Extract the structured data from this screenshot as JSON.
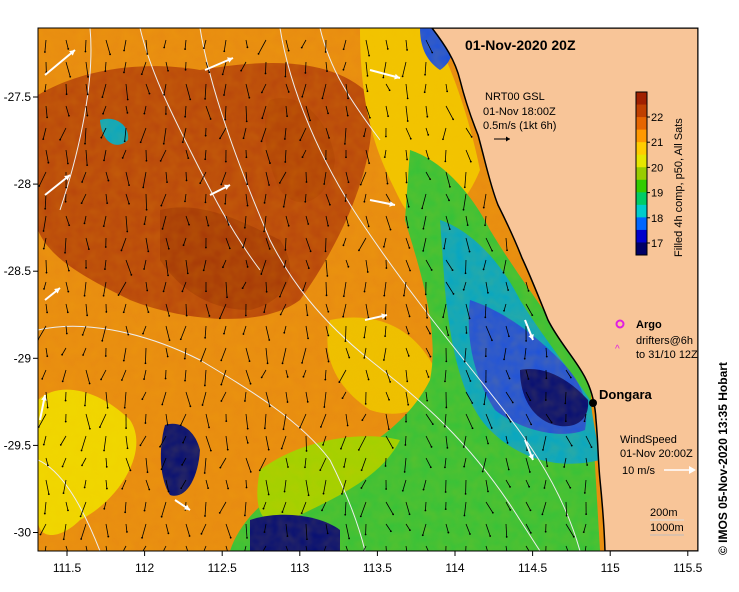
{
  "title": "01-Nov-2020 20Z",
  "current_legend": {
    "product": "NRT00 GSL",
    "time": "01-Nov 18:00Z",
    "scale": "0.5m/s (1kt 6h)"
  },
  "colorbar": {
    "label": "Filled 4h comp, p50, All Sats",
    "ticks": [
      "17",
      "18",
      "19",
      "20",
      "21",
      "22"
    ],
    "colors": [
      "#000066",
      "#0000cc",
      "#0066ff",
      "#00cccc",
      "#00cc66",
      "#33cc00",
      "#99cc00",
      "#e6e600",
      "#ffcc00",
      "#ff9900",
      "#e66600",
      "#c04000",
      "#a02000"
    ]
  },
  "x_ticks": [
    "111.5",
    "112",
    "112.5",
    "113",
    "113.5",
    "114",
    "114.5",
    "115",
    "115.5"
  ],
  "y_ticks": [
    "-27.5",
    "-28",
    "-28.5",
    "-29",
    "-29.5",
    "-30"
  ],
  "argo_label": "Argo",
  "drifters_label_1": "drifters@6h",
  "drifters_label_2": "to 31/10 12Z",
  "place_label": "Dongara",
  "wind_legend": {
    "title": "WindSpeed",
    "time": "01-Nov 20:00Z",
    "scale": "10 m/s"
  },
  "isobaths": [
    "200m",
    "1000m"
  ],
  "credit": "© IMOS 05-Nov-2020 13:35 Hobart",
  "colors": {
    "land": "#f8c598",
    "wind_arrow": "#ffffff",
    "current_arrow": "#000000",
    "argo": "#e020e0",
    "isobath_200": "#dddddd",
    "isobath_1000": "#bbbbbb"
  }
}
